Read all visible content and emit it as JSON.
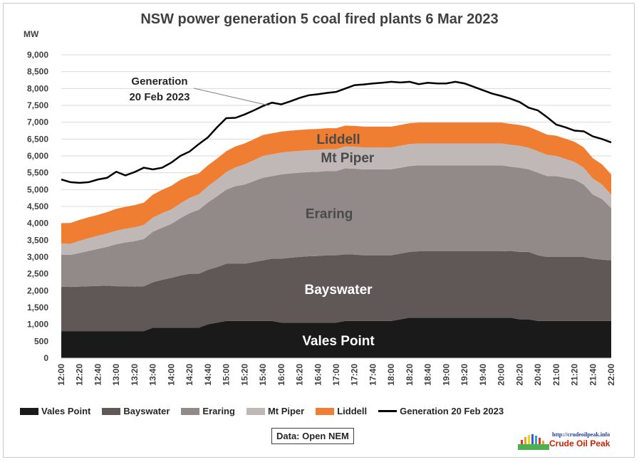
{
  "chart_data": {
    "type": "area",
    "stacked": true,
    "title": "NSW power generation 5 coal fired plants 6 Mar 2023",
    "ylabel": "MW",
    "ylim": [
      0,
      9000
    ],
    "yticks": [
      "0",
      "500",
      "1,000",
      "1,500",
      "2,000",
      "2,500",
      "3,000",
      "3,500",
      "4,000",
      "4,500",
      "5,000",
      "5,500",
      "6,000",
      "6,500",
      "7,000",
      "7,500",
      "8,000",
      "8,500",
      "9,000"
    ],
    "x_tick_labels": [
      "12:00",
      "12:10",
      "12:20",
      "12:30",
      "12:40",
      "12:50",
      "13:00",
      "13:10",
      "13:20",
      "13:30",
      "13:40",
      "13:50",
      "14:00",
      "14:10",
      "14:20",
      "14:30",
      "14:40",
      "14:50",
      "15:00",
      "15:10",
      "15:20",
      "15:30",
      "15:40",
      "15:50",
      "16:00",
      "16:10",
      "16:20",
      "16:30",
      "16:40",
      "16:50",
      "17:00",
      "17:10",
      "17:20",
      "17:30",
      "17:40",
      "17:50",
      "18:00",
      "18:10",
      "18:20",
      "18:30",
      "18:40",
      "18:50",
      "19:00",
      "19:10",
      "19:20",
      "19:30",
      "19:40",
      "19:50",
      "20:00",
      "20:10",
      "20:20",
      "20:30",
      "20:40",
      "20:50",
      "21:00",
      "21:10",
      "21:20",
      "21:30",
      "21:40",
      "21:50",
      "22:00"
    ],
    "series": [
      {
        "name": "Vales Point",
        "color": "#1a1a1a",
        "label": "Vales Point",
        "values": [
          800,
          800,
          800,
          800,
          800,
          800,
          800,
          800,
          800,
          800,
          900,
          900,
          900,
          900,
          900,
          900,
          1000,
          1050,
          1100,
          1100,
          1100,
          1100,
          1100,
          1100,
          1050,
          1050,
          1050,
          1050,
          1050,
          1050,
          1050,
          1100,
          1100,
          1100,
          1100,
          1100,
          1100,
          1150,
          1200,
          1200,
          1200,
          1200,
          1200,
          1200,
          1200,
          1200,
          1200,
          1200,
          1200,
          1200,
          1150,
          1150,
          1100,
          1100,
          1100,
          1100,
          1100,
          1100,
          1100,
          1100,
          1100
        ]
      },
      {
        "name": "Bayswater",
        "color": "#605856",
        "label": "Bayswater",
        "values": [
          1320,
          1310,
          1320,
          1330,
          1340,
          1350,
          1330,
          1330,
          1320,
          1330,
          1350,
          1420,
          1480,
          1550,
          1600,
          1600,
          1620,
          1650,
          1700,
          1700,
          1700,
          1750,
          1800,
          1850,
          1900,
          1930,
          1950,
          1970,
          1980,
          2000,
          2000,
          1980,
          1970,
          1950,
          1950,
          1950,
          1950,
          1950,
          1950,
          1970,
          1970,
          1970,
          1970,
          1970,
          1970,
          1970,
          1970,
          1970,
          1970,
          1980,
          2000,
          2000,
          1950,
          1900,
          1900,
          1900,
          1900,
          1900,
          1850,
          1820,
          1800
        ]
      },
      {
        "name": "Eraring",
        "color": "#928a88",
        "label": "Eraring",
        "values": [
          950,
          950,
          1000,
          1050,
          1100,
          1150,
          1250,
          1300,
          1350,
          1400,
          1500,
          1550,
          1600,
          1700,
          1800,
          1900,
          2000,
          2100,
          2200,
          2300,
          2350,
          2400,
          2450,
          2450,
          2500,
          2500,
          2500,
          2500,
          2500,
          2500,
          2500,
          2550,
          2550,
          2550,
          2550,
          2550,
          2550,
          2550,
          2550,
          2550,
          2550,
          2550,
          2550,
          2550,
          2550,
          2550,
          2550,
          2550,
          2550,
          2500,
          2500,
          2450,
          2450,
          2400,
          2400,
          2350,
          2300,
          2150,
          1900,
          1800,
          1550
        ]
      },
      {
        "name": "Mt Piper",
        "color": "#bfb8b6",
        "label": "Mt Piper",
        "values": [
          330,
          330,
          360,
          380,
          390,
          400,
          400,
          410,
          410,
          420,
          420,
          430,
          430,
          440,
          450,
          460,
          480,
          500,
          520,
          560,
          600,
          620,
          650,
          650,
          650,
          650,
          650,
          650,
          650,
          650,
          650,
          650,
          650,
          650,
          650,
          650,
          650,
          650,
          650,
          650,
          650,
          650,
          650,
          650,
          650,
          650,
          650,
          650,
          650,
          650,
          650,
          640,
          640,
          630,
          600,
          560,
          520,
          500,
          480,
          430,
          400
        ]
      },
      {
        "name": "Liddell",
        "color": "#ef7e32",
        "label": "Liddell",
        "values": [
          600,
          620,
          620,
          620,
          620,
          630,
          650,
          650,
          660,
          660,
          680,
          690,
          700,
          700,
          650,
          620,
          620,
          620,
          620,
          620,
          620,
          620,
          620,
          620,
          620,
          620,
          620,
          620,
          620,
          620,
          620,
          620,
          620,
          620,
          620,
          620,
          620,
          620,
          620,
          620,
          620,
          620,
          620,
          620,
          620,
          620,
          620,
          620,
          620,
          620,
          620,
          620,
          610,
          600,
          600,
          600,
          600,
          600,
          600,
          600,
          600
        ]
      },
      {
        "name": "Generation 20 Feb 2023",
        "color": "#000000",
        "type": "line",
        "values": [
          5300,
          5220,
          5200,
          5220,
          5300,
          5350,
          5530,
          5420,
          5520,
          5650,
          5600,
          5650,
          5800,
          6000,
          6130,
          6350,
          6550,
          6850,
          7120,
          7130,
          7230,
          7350,
          7480,
          7580,
          7530,
          7620,
          7720,
          7800,
          7830,
          7870,
          7900,
          8000,
          8100,
          8120,
          8150,
          8170,
          8200,
          8180,
          8200,
          8130,
          8170,
          8150,
          8150,
          8200,
          8150,
          8050,
          7950,
          7850,
          7780,
          7700,
          7600,
          7430,
          7350,
          7150,
          6930,
          6850,
          6750,
          6730,
          6580,
          6500,
          6400
        ]
      }
    ],
    "annotations": [
      {
        "text_line1": "Generation",
        "text_line2": "20 Feb 2023"
      }
    ],
    "legend_position": "bottom",
    "grid": true
  },
  "source": "Data: Open NEM",
  "logo": {
    "url": "http://crudeoilpeak.info",
    "name": "Crude Oil Peak"
  }
}
